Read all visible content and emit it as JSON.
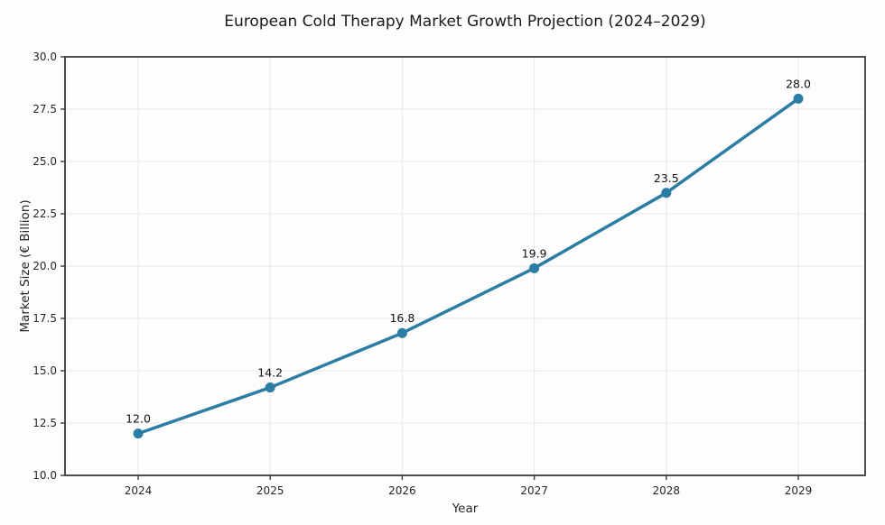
{
  "chart_data": {
    "type": "line",
    "title": "European Cold Therapy Market Growth Projection (2024–2029)",
    "xlabel": "Year",
    "ylabel": "Market Size (€ Billion)",
    "x": [
      "2024",
      "2025",
      "2026",
      "2027",
      "2028",
      "2029"
    ],
    "series": [
      {
        "name": "Market Size",
        "values": [
          12.0,
          14.2,
          16.8,
          19.9,
          23.5,
          28.0
        ],
        "point_labels": [
          "12.0",
          "14.2",
          "16.8",
          "19.9",
          "23.5",
          "28.0"
        ]
      }
    ],
    "ylim": [
      10.0,
      30.0
    ],
    "yticks": [
      10.0,
      12.5,
      15.0,
      17.5,
      20.0,
      22.5,
      25.0,
      27.5,
      30.0
    ],
    "ytick_labels": [
      "10.0",
      "12.5",
      "15.0",
      "17.5",
      "20.0",
      "22.5",
      "25.0",
      "27.5",
      "30.0"
    ],
    "grid": true,
    "legend": "none",
    "colors": {
      "line": "#2c7da4",
      "marker": "#2c7da4",
      "grid": "#e7e7e7",
      "spine": "#3a3a3a",
      "text": "#262626",
      "background": "#fdfdfd"
    }
  }
}
